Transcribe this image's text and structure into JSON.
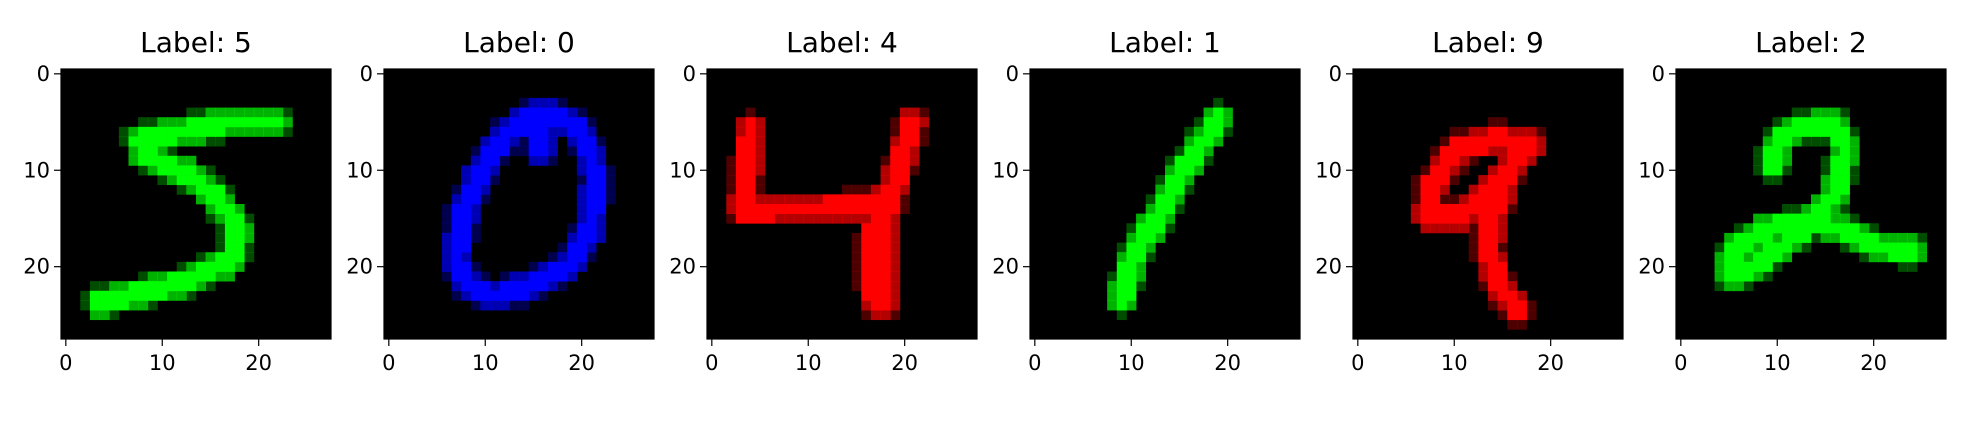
{
  "figure": {
    "image_size": 28,
    "x_ticks": [
      0,
      10,
      20
    ],
    "y_ticks": [
      0,
      10,
      20
    ],
    "panels": [
      {
        "title": "Label: 5",
        "label": 5,
        "color": "#00ff00",
        "digit_icon": "handwritten-digit-5-icon"
      },
      {
        "title": "Label: 0",
        "label": 0,
        "color": "#0000ff",
        "digit_icon": "handwritten-digit-0-icon"
      },
      {
        "title": "Label: 4",
        "label": 4,
        "color": "#ff0000",
        "digit_icon": "handwritten-digit-4-icon"
      },
      {
        "title": "Label: 1",
        "label": 1,
        "color": "#00ff00",
        "digit_icon": "handwritten-digit-1-icon"
      },
      {
        "title": "Label: 9",
        "label": 9,
        "color": "#ff0000",
        "digit_icon": "handwritten-digit-9-icon"
      },
      {
        "title": "Label: 2",
        "label": 2,
        "color": "#00ff00",
        "digit_icon": "handwritten-digit-2-icon"
      }
    ]
  }
}
